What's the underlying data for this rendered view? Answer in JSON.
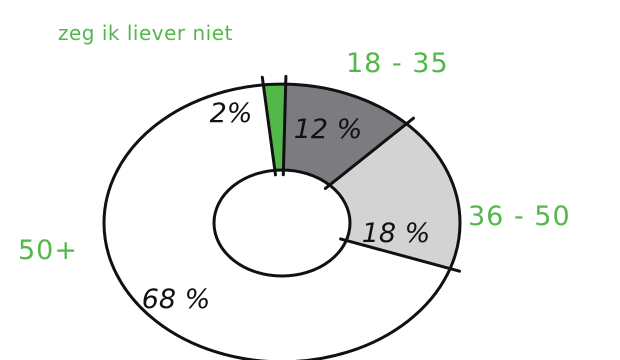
{
  "chart_data": {
    "type": "pie",
    "variant": "donut",
    "title": "",
    "categories": [
      "zeg ik liever niet",
      "18 - 35",
      "36 - 50",
      "50+"
    ],
    "values": [
      2,
      12,
      18,
      68
    ],
    "value_labels": [
      "2%",
      "12 %",
      "18 %",
      "68 %"
    ],
    "colors": [
      "#52b84a",
      "#7b7b80",
      "#d3d3d3",
      "#ffffff"
    ],
    "label_color": "#52b84a",
    "outline_color": "#111111",
    "legend": "labels placed around the ring"
  }
}
